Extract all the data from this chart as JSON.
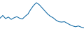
{
  "values": [
    10500,
    11200,
    10400,
    10800,
    10200,
    10600,
    10900,
    10500,
    10300,
    11000,
    11600,
    12800,
    13800,
    14500,
    14000,
    13200,
    12400,
    11600,
    11000,
    10600,
    10000,
    9600,
    9500,
    9600,
    9200,
    8800,
    8500,
    8300,
    8500,
    8200,
    8000
  ],
  "line_color": "#1a6fa8",
  "line_width": 0.8,
  "background_color": "#ffffff",
  "ylim_min": 7200,
  "ylim_max": 15200
}
